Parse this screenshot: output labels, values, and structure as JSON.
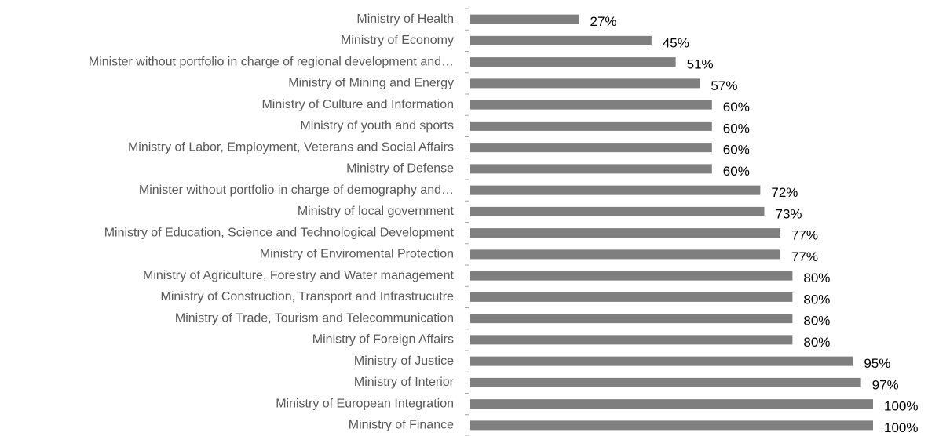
{
  "chart_data": {
    "type": "bar",
    "orientation": "horizontal",
    "color": "#7f7f7f",
    "categories": [
      "Ministry of Health",
      "Ministry of Economy",
      "Minister without portfolio in charge of regional development and…",
      "Ministry of Mining and Energy",
      "Ministry of Culture and Information",
      "Ministry of youth and sports",
      "Ministry of Labor, Employment, Veterans and Social Affairs",
      "Ministry of Defense",
      "Minister without portfolio in charge of demography and…",
      "Ministry of local government",
      "Ministry of Education, Science and Technological Development",
      "Ministry of Enviromental Protection",
      "Ministry of Agriculture, Forestry and Water management",
      "Ministry of Construction, Transport and Infrastrucutre",
      "Ministry of Trade, Tourism and Telecommunication",
      "Ministry of Foreign Affairs",
      "Ministry of Justice",
      "Ministry of Interior",
      "Ministry of European Integration",
      "Ministry of Finance"
    ],
    "values": [
      27,
      45,
      51,
      57,
      60,
      60,
      60,
      60,
      72,
      73,
      77,
      77,
      80,
      80,
      80,
      80,
      95,
      97,
      100,
      100
    ],
    "value_labels": [
      "27%",
      "45%",
      "51%",
      "57%",
      "60%",
      "60%",
      "60%",
      "60%",
      "72%",
      "73%",
      "77%",
      "77%",
      "80%",
      "80%",
      "80%",
      "80%",
      "95%",
      "97%",
      "100%",
      "100%"
    ]
  }
}
